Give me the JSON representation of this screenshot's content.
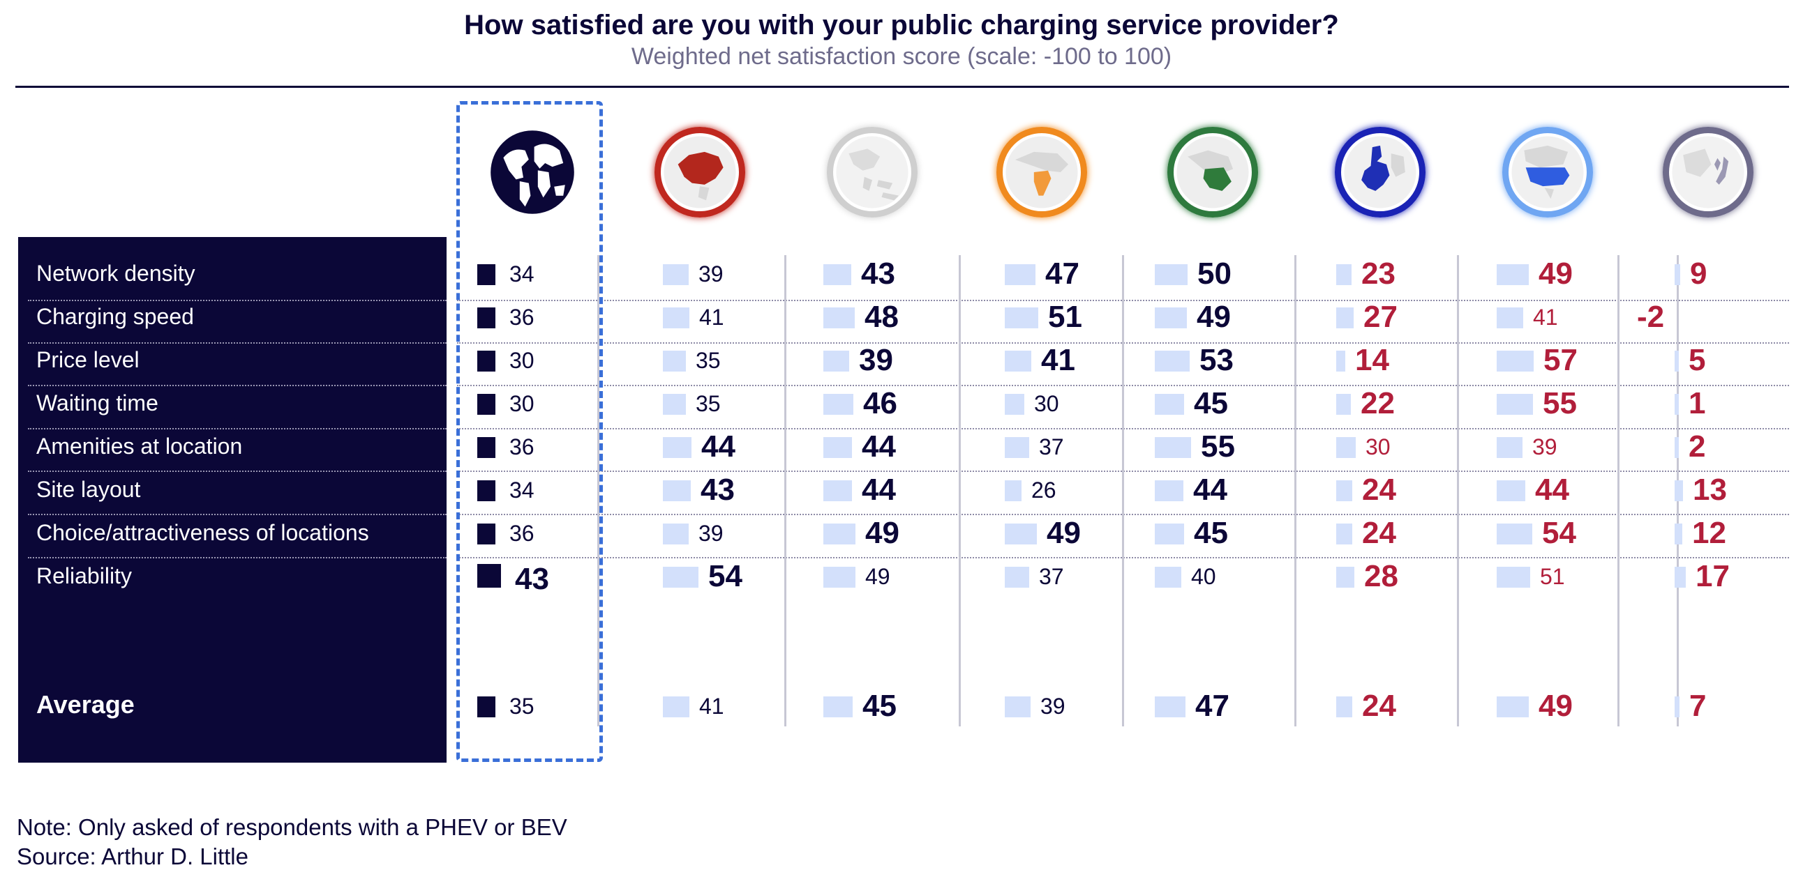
{
  "title": "How satisfied are you with your public charging service provider?",
  "subtitle": "Weighted net satisfaction score (scale: -100 to 100)",
  "colors": {
    "navy": "#0b0737",
    "bar_light": "#d3e0fb",
    "bar_global": "#0b0737",
    "red_value": "#b11e3a",
    "highlight": "#3a6fd8"
  },
  "regions": [
    {
      "icon": "world-globe-icon",
      "ring": "#0b0737"
    },
    {
      "icon": "china-map-icon",
      "ring": "#c0281f"
    },
    {
      "icon": "southeast-asia-map-icon",
      "ring": "#cfcfcf"
    },
    {
      "icon": "india-map-icon",
      "ring": "#f08a1e"
    },
    {
      "icon": "middle-east-map-icon",
      "ring": "#2e7a3e"
    },
    {
      "icon": "europe-map-icon",
      "ring": "#1a23b5"
    },
    {
      "icon": "usa-map-icon",
      "ring": "#6fa6f2"
    },
    {
      "icon": "japan-korea-map-icon",
      "ring": "#6e6b8b"
    }
  ],
  "chart_data": {
    "type": "table",
    "rows": [
      "Network density",
      "Charging speed",
      "Price level",
      "Waiting time",
      "Amenities at location",
      "Site layout",
      "Choice/attractiveness of locations",
      "Reliability",
      "Average"
    ],
    "values": [
      [
        34,
        39,
        43,
        47,
        50,
        23,
        49,
        9
      ],
      [
        36,
        41,
        48,
        51,
        49,
        27,
        41,
        -2
      ],
      [
        30,
        35,
        39,
        41,
        53,
        14,
        57,
        5
      ],
      [
        30,
        35,
        46,
        30,
        45,
        22,
        55,
        1
      ],
      [
        36,
        44,
        44,
        37,
        55,
        30,
        39,
        2
      ],
      [
        34,
        43,
        44,
        26,
        44,
        24,
        44,
        13
      ],
      [
        36,
        39,
        49,
        49,
        45,
        24,
        54,
        12
      ],
      [
        43,
        54,
        49,
        37,
        40,
        28,
        51,
        17
      ],
      [
        35,
        41,
        45,
        39,
        47,
        24,
        49,
        7
      ]
    ],
    "emphasis": [
      [
        false,
        false,
        true,
        true,
        true,
        true,
        true,
        true
      ],
      [
        false,
        false,
        true,
        true,
        true,
        true,
        false,
        true
      ],
      [
        false,
        false,
        true,
        true,
        true,
        true,
        true,
        true
      ],
      [
        false,
        false,
        true,
        false,
        true,
        true,
        true,
        true
      ],
      [
        false,
        true,
        true,
        false,
        true,
        false,
        false,
        true
      ],
      [
        false,
        true,
        true,
        false,
        true,
        true,
        true,
        true
      ],
      [
        false,
        false,
        true,
        true,
        true,
        true,
        true,
        true
      ],
      [
        true,
        true,
        false,
        false,
        false,
        true,
        false,
        true
      ],
      [
        false,
        false,
        true,
        false,
        true,
        true,
        true,
        true
      ]
    ],
    "highlighted_column": 0
  },
  "notes": {
    "note": "Note: Only asked of respondents with a PHEV or BEV",
    "source": "Source: Arthur D. Little"
  }
}
